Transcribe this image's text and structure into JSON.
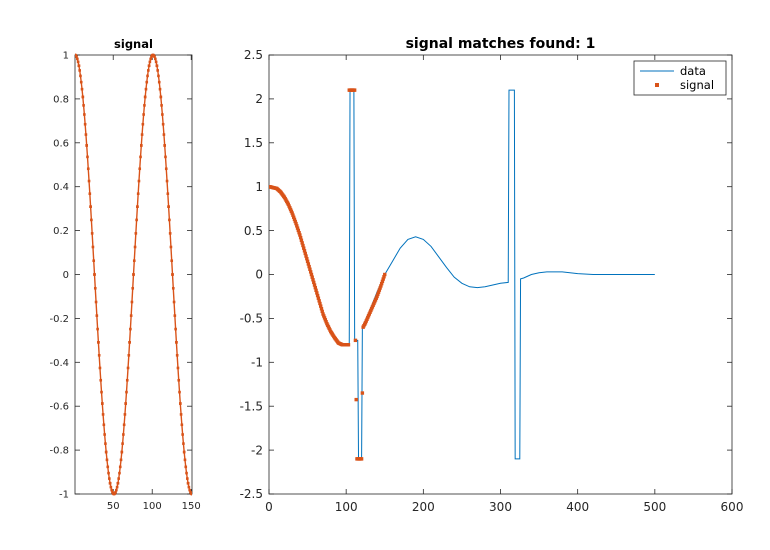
{
  "chart_data": [
    {
      "type": "line",
      "title": "signal",
      "xlim": [
        1,
        151
      ],
      "ylim": [
        -1,
        1
      ],
      "xticks": [
        50,
        100,
        150
      ],
      "yticks": [
        -1,
        -0.8,
        -0.6,
        -0.4,
        -0.2,
        0,
        0.2,
        0.4,
        0.6,
        0.8,
        1
      ],
      "xticklabels": [
        "50",
        "100",
        "150"
      ],
      "yticklabels": [
        "-1",
        "-0.8",
        "-0.6",
        "-0.4",
        "-0.2",
        "0",
        "0.2",
        "0.4",
        "0.6",
        "0.8",
        "1"
      ],
      "series": [
        {
          "marker": "square",
          "color": "#D95319",
          "formula": "cos(2*pi*(n-1)/100)",
          "x": [
            1,
            6,
            11,
            16,
            21,
            26,
            31,
            36,
            41,
            46,
            51,
            56,
            61,
            66,
            71,
            76,
            81,
            86,
            91,
            96,
            101,
            106,
            111,
            116,
            121,
            126,
            131,
            136,
            141,
            146,
            151
          ],
          "y": [
            1.0,
            0.951,
            0.809,
            0.588,
            0.309,
            0.0,
            -0.309,
            -0.588,
            -0.809,
            -0.951,
            -1.0,
            -0.951,
            -0.809,
            -0.588,
            -0.309,
            0.0,
            0.309,
            0.588,
            0.809,
            0.951,
            1.0,
            0.951,
            0.809,
            0.588,
            0.309,
            0.0,
            -0.309,
            -0.588,
            -0.809,
            -0.951,
            -1.0
          ]
        }
      ],
      "grid": false
    },
    {
      "type": "line",
      "title": "signal matches found: 1",
      "xlim": [
        0,
        600
      ],
      "ylim": [
        -2.5,
        2.5
      ],
      "xticks": [
        0,
        100,
        200,
        300,
        400,
        500,
        600
      ],
      "yticks": [
        -2.5,
        -2,
        -1.5,
        -1,
        -0.5,
        0,
        0.5,
        1,
        1.5,
        2,
        2.5
      ],
      "xticklabels": [
        "0",
        "100",
        "200",
        "300",
        "400",
        "500",
        "600"
      ],
      "yticklabels": [
        "-2.5",
        "-2",
        "-1.5",
        "-1",
        "-0.5",
        "0",
        "0.5",
        "1",
        "1.5",
        "2",
        "2.5"
      ],
      "legend": {
        "position": "top-right",
        "entries": [
          "data",
          "signal"
        ]
      },
      "series": [
        {
          "name": "data",
          "color": "#0072BD",
          "x": [
            1,
            10,
            20,
            30,
            40,
            50,
            60,
            70,
            80,
            90,
            100,
            104,
            105,
            110,
            111,
            115,
            116,
            120,
            121,
            130,
            140,
            150,
            160,
            170,
            180,
            190,
            200,
            210,
            220,
            230,
            240,
            250,
            260,
            270,
            280,
            290,
            300,
            310,
            311,
            312,
            318,
            319,
            320,
            325,
            326,
            330,
            335,
            340,
            350,
            360,
            370,
            380,
            390,
            400,
            420,
            450,
            500
          ],
          "y": [
            1.0,
            0.98,
            0.9,
            0.7,
            0.45,
            0.15,
            -0.15,
            -0.45,
            -0.65,
            -0.78,
            -0.8,
            -0.8,
            2.1,
            2.1,
            -0.75,
            -0.75,
            -2.1,
            -2.1,
            -0.6,
            -0.42,
            -0.2,
            0.0,
            0.15,
            0.3,
            0.4,
            0.43,
            0.4,
            0.32,
            0.2,
            0.08,
            -0.03,
            -0.1,
            -0.14,
            -0.15,
            -0.14,
            -0.12,
            -0.1,
            -0.09,
            2.1,
            2.1,
            2.1,
            -2.1,
            -2.1,
            -2.1,
            -0.05,
            -0.04,
            -0.02,
            0.0,
            0.02,
            0.03,
            0.03,
            0.03,
            0.02,
            0.01,
            0.0,
            0.0,
            0.0
          ]
        },
        {
          "name": "signal",
          "marker": "square",
          "color": "#D95319",
          "x": [
            1,
            5,
            10,
            15,
            20,
            25,
            30,
            35,
            40,
            45,
            50,
            55,
            60,
            65,
            70,
            75,
            80,
            85,
            90,
            95,
            100,
            103,
            104,
            106,
            108,
            110,
            112,
            114,
            116,
            118,
            120,
            122,
            125,
            130,
            135,
            140,
            145,
            150
          ],
          "y": [
            1.0,
            0.99,
            0.98,
            0.94,
            0.88,
            0.8,
            0.7,
            0.58,
            0.45,
            0.3,
            0.15,
            0.0,
            -0.15,
            -0.3,
            -0.45,
            -0.56,
            -0.65,
            -0.72,
            -0.78,
            -0.8,
            -0.8,
            -0.8,
            2.1,
            2.1,
            2.1,
            2.1,
            -0.75,
            -2.1,
            -2.1,
            -2.1,
            -2.1,
            -0.6,
            -0.55,
            -0.45,
            -0.35,
            -0.25,
            -0.13,
            0.0
          ]
        }
      ],
      "grid": false
    }
  ]
}
